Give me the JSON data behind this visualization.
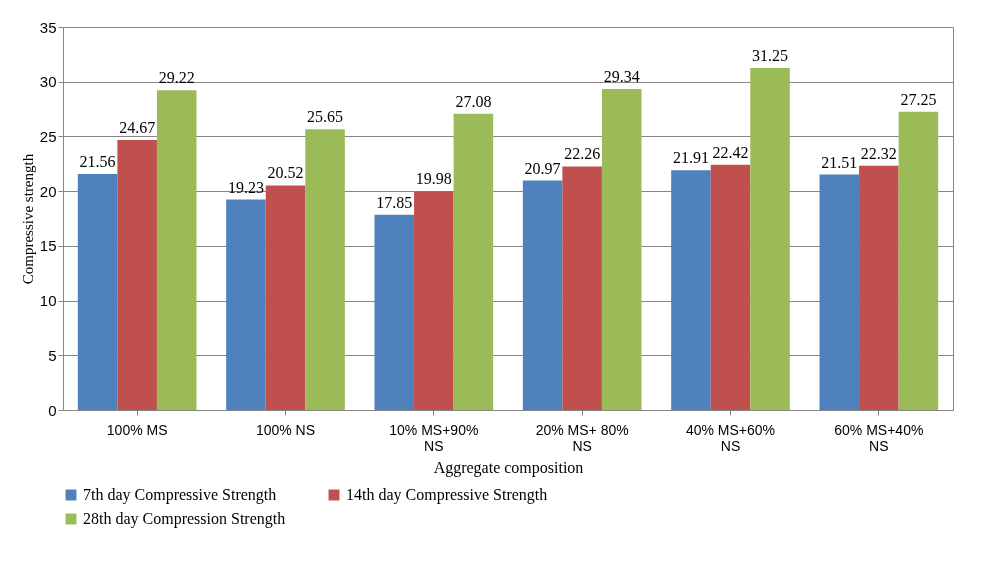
{
  "chart_data": {
    "type": "bar",
    "xlabel": "Aggregate composition",
    "ylabel": "Compressive strength",
    "categories": [
      "100% MS",
      "100% NS",
      "10% MS+90% NS",
      "20% MS+ 80% NS",
      "40% MS+60% NS",
      "60% MS+40% NS"
    ],
    "series": [
      {
        "name": "7th day  Compressive Strength",
        "color": "#4f81bd",
        "values": [
          21.56,
          19.23,
          17.85,
          20.97,
          21.91,
          21.51
        ]
      },
      {
        "name": "14th day  Compressive Strength",
        "color": "#c0504d",
        "values": [
          24.67,
          20.52,
          19.98,
          22.26,
          22.42,
          22.32
        ]
      },
      {
        "name": "28th day Compression Strength",
        "color": "#9bbb59",
        "values": [
          29.22,
          25.65,
          27.08,
          29.34,
          31.25,
          27.25
        ]
      }
    ],
    "ylim": [
      0,
      35
    ],
    "yticks": [
      0,
      5,
      10,
      15,
      20,
      25,
      30,
      35
    ],
    "grid": "y",
    "legend": "bottom",
    "data_labels": true
  }
}
